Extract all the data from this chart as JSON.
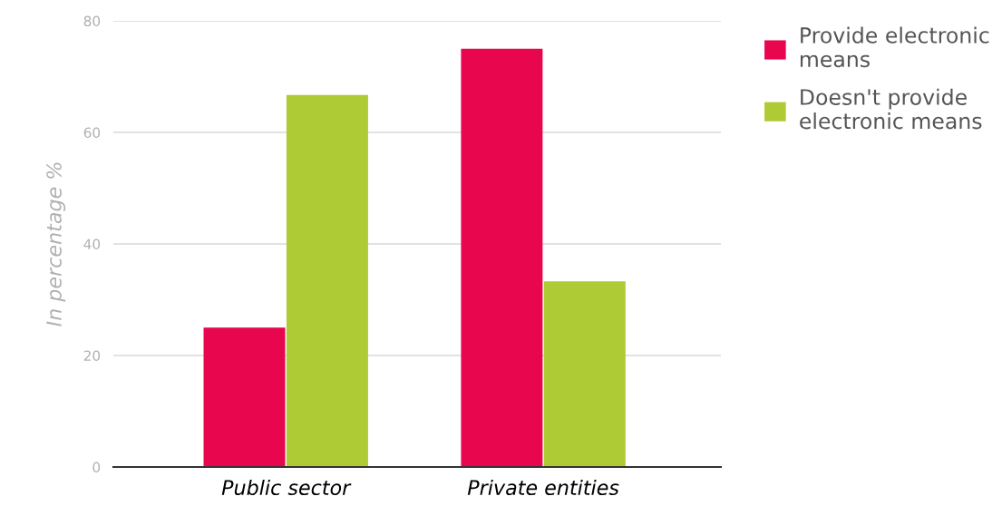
{
  "chart_data": {
    "type": "bar",
    "ylabel": "In percentage %",
    "categories": [
      "Public sector",
      "Private entities"
    ],
    "series": [
      {
        "name": "Provide electronic\nmeans",
        "color": "#e8074f",
        "values": [
          25,
          75
        ]
      },
      {
        "name": "Doesn't provide\nelectronic means",
        "color": "#aecb35",
        "values": [
          66.7,
          33.3
        ]
      }
    ],
    "ylim": [
      0,
      80
    ],
    "yticks": [
      0,
      20,
      40,
      60,
      80
    ],
    "grid": "y",
    "legend": "top right"
  }
}
